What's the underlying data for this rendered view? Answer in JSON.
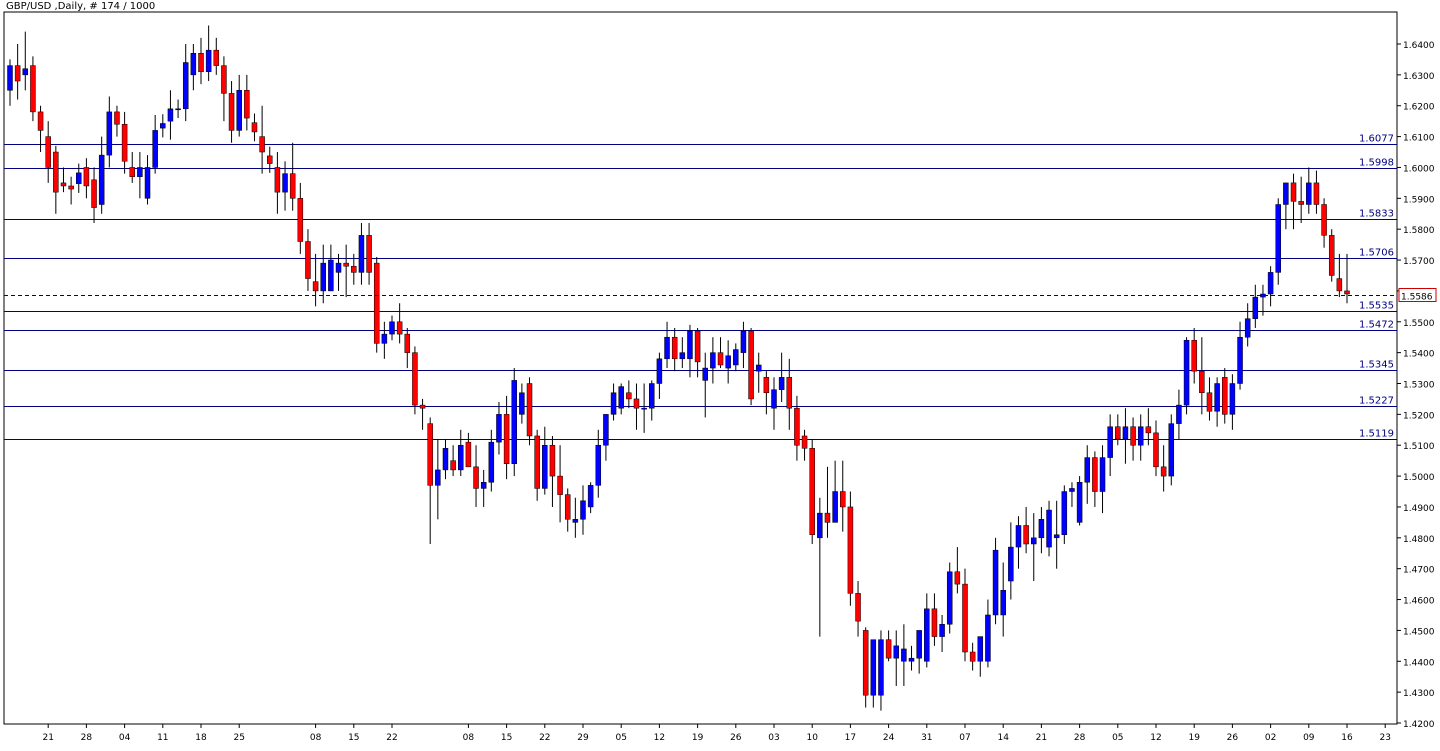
{
  "header": {
    "title": "GBP/USD ,Daily, # 174 / 1000"
  },
  "colors": {
    "bull": "#0000ff",
    "bear": "#ff0000",
    "wick": "#000000",
    "level_line": "#000080",
    "level_text": "#000080",
    "current_price": "#cc0000",
    "frame": "#000000",
    "background": "#ffffff"
  },
  "chart_data": {
    "type": "candlestick",
    "title": "GBP/USD ,Daily, # 174 / 1000",
    "ylim": [
      1.42,
      1.65
    ],
    "y_ticks": [
      "1.4200",
      "1.4300",
      "1.4400",
      "1.4500",
      "1.4600",
      "1.4700",
      "1.4800",
      "1.4900",
      "1.5000",
      "1.5100",
      "1.5200",
      "1.5300",
      "1.5400",
      "1.5500",
      "1.5600",
      "1.5700",
      "1.5800",
      "1.5900",
      "1.6000",
      "1.6100",
      "1.6200",
      "1.6300",
      "1.6400"
    ],
    "x_ticks": [
      {
        "label": "21",
        "bar": 5
      },
      {
        "label": "28",
        "bar": 10
      },
      {
        "label": "04",
        "bar": 15
      },
      {
        "label": "11",
        "bar": 20
      },
      {
        "label": "18",
        "bar": 25
      },
      {
        "label": "25",
        "bar": 30
      },
      {
        "label": "08",
        "bar": 40
      },
      {
        "label": "15",
        "bar": 45
      },
      {
        "label": "22",
        "bar": 50
      },
      {
        "label": "08",
        "bar": 60
      },
      {
        "label": "15",
        "bar": 65
      },
      {
        "label": "22",
        "bar": 70
      },
      {
        "label": "29",
        "bar": 75
      },
      {
        "label": "05",
        "bar": 80
      },
      {
        "label": "12",
        "bar": 85
      },
      {
        "label": "19",
        "bar": 90
      },
      {
        "label": "26",
        "bar": 95
      },
      {
        "label": "03",
        "bar": 100
      },
      {
        "label": "10",
        "bar": 105
      },
      {
        "label": "17",
        "bar": 110
      },
      {
        "label": "24",
        "bar": 115
      },
      {
        "label": "31",
        "bar": 120
      },
      {
        "label": "07",
        "bar": 125
      },
      {
        "label": "14",
        "bar": 130
      },
      {
        "label": "21",
        "bar": 135
      },
      {
        "label": "28",
        "bar": 140
      },
      {
        "label": "05",
        "bar": 145
      },
      {
        "label": "12",
        "bar": 150
      },
      {
        "label": "19",
        "bar": 155
      },
      {
        "label": "26",
        "bar": 160
      },
      {
        "label": "02",
        "bar": 165
      },
      {
        "label": "09",
        "bar": 170
      },
      {
        "label": "16",
        "bar": 175
      },
      {
        "label": "23",
        "bar": 180
      }
    ],
    "levels": [
      "1.6077",
      "1.5998",
      "1.5833",
      "1.5706",
      "1.5535",
      "1.5472",
      "1.5345",
      "1.5227",
      "1.5119"
    ],
    "current_price": "1.5586",
    "ohlc_anchors": [
      [
        0,
        1.625,
        1.635,
        1.62,
        1.633
      ],
      [
        1,
        1.633,
        1.64,
        1.622,
        1.628
      ],
      [
        2,
        1.63,
        1.644,
        1.625,
        1.632
      ],
      [
        3,
        1.633,
        1.636,
        1.615,
        1.618
      ],
      [
        4,
        1.618,
        1.62,
        1.605,
        1.612
      ],
      [
        5,
        1.61,
        1.615,
        1.595,
        1.6
      ],
      [
        6,
        1.605,
        1.607,
        1.585,
        1.592
      ],
      [
        7,
        1.595,
        1.6,
        1.592,
        1.594
      ],
      [
        8,
        1.594,
        1.597,
        1.588,
        1.593
      ],
      [
        10,
        1.6,
        1.603,
        1.59,
        1.594
      ],
      [
        11,
        1.596,
        1.6,
        1.582,
        1.587
      ],
      [
        12,
        1.588,
        1.61,
        1.585,
        1.604
      ],
      [
        13,
        1.604,
        1.623,
        1.6,
        1.618
      ],
      [
        14,
        1.618,
        1.62,
        1.61,
        1.614
      ],
      [
        15,
        1.614,
        1.618,
        1.598,
        1.602
      ],
      [
        16,
        1.6,
        1.605,
        1.595,
        1.597
      ],
      [
        17,
        1.597,
        1.605,
        1.59,
        1.6
      ],
      [
        18,
        1.59,
        1.604,
        1.588,
        1.6
      ],
      [
        19,
        1.6,
        1.617,
        1.598,
        1.612
      ],
      [
        21,
        1.615,
        1.625,
        1.609,
        1.619
      ],
      [
        23,
        1.619,
        1.64,
        1.615,
        1.634
      ],
      [
        24,
        1.63,
        1.64,
        1.625,
        1.637
      ],
      [
        25,
        1.637,
        1.642,
        1.627,
        1.631
      ],
      [
        26,
        1.631,
        1.646,
        1.628,
        1.638
      ],
      [
        27,
        1.638,
        1.642,
        1.63,
        1.633
      ],
      [
        28,
        1.633,
        1.636,
        1.615,
        1.624
      ],
      [
        29,
        1.624,
        1.628,
        1.608,
        1.612
      ],
      [
        30,
        1.612,
        1.63,
        1.61,
        1.625
      ],
      [
        31,
        1.625,
        1.63,
        1.612,
        1.616
      ],
      [
        33,
        1.61,
        1.62,
        1.598,
        1.605
      ],
      [
        35,
        1.6,
        1.605,
        1.585,
        1.592
      ],
      [
        36,
        1.592,
        1.602,
        1.586,
        1.598
      ],
      [
        37,
        1.598,
        1.608,
        1.586,
        1.59
      ],
      [
        38,
        1.59,
        1.595,
        1.572,
        1.576
      ],
      [
        39,
        1.576,
        1.58,
        1.56,
        1.564
      ],
      [
        40,
        1.563,
        1.572,
        1.555,
        1.56
      ],
      [
        41,
        1.56,
        1.575,
        1.556,
        1.569
      ],
      [
        42,
        1.56,
        1.575,
        1.56,
        1.57
      ],
      [
        43,
        1.566,
        1.572,
        1.56,
        1.569
      ],
      [
        44,
        1.569,
        1.575,
        1.558,
        1.568
      ],
      [
        45,
        1.568,
        1.572,
        1.562,
        1.566
      ],
      [
        46,
        1.566,
        1.582,
        1.562,
        1.578
      ],
      [
        47,
        1.578,
        1.582,
        1.562,
        1.566
      ],
      [
        48,
        1.569,
        1.571,
        1.54,
        1.543
      ],
      [
        49,
        1.543,
        1.55,
        1.538,
        1.546
      ],
      [
        50,
        1.546,
        1.552,
        1.544,
        1.55
      ],
      [
        51,
        1.55,
        1.556,
        1.543,
        1.546
      ],
      [
        52,
        1.546,
        1.548,
        1.535,
        1.54
      ],
      [
        53,
        1.54,
        1.542,
        1.52,
        1.523
      ],
      [
        54,
        1.523,
        1.525,
        1.515,
        1.522
      ],
      [
        55,
        1.517,
        1.519,
        1.478,
        1.497
      ],
      [
        56,
        1.497,
        1.512,
        1.486,
        1.502
      ],
      [
        57,
        1.502,
        1.512,
        1.499,
        1.509
      ],
      [
        58,
        1.505,
        1.51,
        1.5,
        1.502
      ],
      [
        59,
        1.502,
        1.515,
        1.5,
        1.51
      ],
      [
        60,
        1.511,
        1.514,
        1.505,
        1.503
      ],
      [
        61,
        1.503,
        1.51,
        1.49,
        1.496
      ],
      [
        62,
        1.496,
        1.502,
        1.49,
        1.498
      ],
      [
        63,
        1.498,
        1.515,
        1.495,
        1.511
      ],
      [
        64,
        1.511,
        1.524,
        1.507,
        1.52
      ],
      [
        65,
        1.52,
        1.526,
        1.499,
        1.504
      ],
      [
        66,
        1.504,
        1.535,
        1.5,
        1.531
      ],
      [
        67,
        1.52,
        1.53,
        1.517,
        1.527
      ],
      [
        68,
        1.53,
        1.532,
        1.51,
        1.513
      ],
      [
        69,
        1.513,
        1.515,
        1.492,
        1.496
      ],
      [
        70,
        1.496,
        1.516,
        1.494,
        1.51
      ],
      [
        71,
        1.51,
        1.513,
        1.49,
        1.5
      ],
      [
        72,
        1.5,
        1.51,
        1.485,
        1.494
      ],
      [
        73,
        1.494,
        1.496,
        1.482,
        1.486
      ],
      [
        74,
        1.485,
        1.493,
        1.48,
        1.486
      ],
      [
        75,
        1.486,
        1.497,
        1.481,
        1.492
      ],
      [
        76,
        1.49,
        1.498,
        1.488,
        1.497
      ],
      [
        77,
        1.497,
        1.515,
        1.493,
        1.51
      ],
      [
        78,
        1.51,
        1.52,
        1.505,
        1.52
      ],
      [
        79,
        1.52,
        1.53,
        1.518,
        1.527
      ],
      [
        80,
        1.522,
        1.53,
        1.52,
        1.529
      ],
      [
        81,
        1.527,
        1.531,
        1.522,
        1.525
      ],
      [
        82,
        1.525,
        1.53,
        1.515,
        1.522
      ],
      [
        83,
        1.522,
        1.53,
        1.514,
        1.522
      ],
      [
        84,
        1.522,
        1.531,
        1.518,
        1.53
      ],
      [
        85,
        1.53,
        1.54,
        1.525,
        1.538
      ],
      [
        86,
        1.538,
        1.55,
        1.535,
        1.545
      ],
      [
        87,
        1.545,
        1.548,
        1.534,
        1.538
      ],
      [
        88,
        1.538,
        1.545,
        1.535,
        1.54
      ],
      [
        89,
        1.538,
        1.549,
        1.532,
        1.547
      ],
      [
        90,
        1.547,
        1.548,
        1.532,
        1.537
      ],
      [
        91,
        1.531,
        1.54,
        1.519,
        1.535
      ],
      [
        92,
        1.535,
        1.545,
        1.53,
        1.54
      ],
      [
        93,
        1.54,
        1.545,
        1.535,
        1.536
      ],
      [
        94,
        1.535,
        1.544,
        1.53,
        1.539
      ],
      [
        95,
        1.536,
        1.543,
        1.534,
        1.541
      ],
      [
        96,
        1.54,
        1.55,
        1.535,
        1.547
      ],
      [
        97,
        1.547,
        1.548,
        1.523,
        1.525
      ],
      [
        98,
        1.534,
        1.54,
        1.527,
        1.536
      ],
      [
        99,
        1.532,
        1.534,
        1.52,
        1.527
      ],
      [
        100,
        1.522,
        1.532,
        1.515,
        1.528
      ],
      [
        101,
        1.528,
        1.54,
        1.524,
        1.532
      ],
      [
        102,
        1.532,
        1.538,
        1.515,
        1.522
      ],
      [
        103,
        1.522,
        1.526,
        1.505,
        1.51
      ],
      [
        104,
        1.513,
        1.515,
        1.505,
        1.509
      ],
      [
        105,
        1.509,
        1.512,
        1.478,
        1.481
      ],
      [
        106,
        1.48,
        1.493,
        1.448,
        1.488
      ],
      [
        107,
        1.488,
        1.503,
        1.48,
        1.485
      ],
      [
        108,
        1.485,
        1.505,
        1.485,
        1.495
      ],
      [
        109,
        1.495,
        1.505,
        1.482,
        1.49
      ],
      [
        110,
        1.49,
        1.495,
        1.458,
        1.462
      ],
      [
        111,
        1.462,
        1.466,
        1.448,
        1.453
      ],
      [
        112,
        1.45,
        1.451,
        1.425,
        1.429
      ],
      [
        113,
        1.429,
        1.44,
        1.425,
        1.447
      ],
      [
        114,
        1.429,
        1.45,
        1.424,
        1.447
      ],
      [
        115,
        1.447,
        1.45,
        1.44,
        1.441
      ],
      [
        116,
        1.441,
        1.45,
        1.432,
        1.445
      ],
      [
        117,
        1.44,
        1.452,
        1.432,
        1.444
      ],
      [
        118,
        1.44,
        1.445,
        1.437,
        1.441
      ],
      [
        119,
        1.441,
        1.45,
        1.436,
        1.45
      ],
      [
        120,
        1.44,
        1.462,
        1.438,
        1.457
      ],
      [
        121,
        1.457,
        1.462,
        1.445,
        1.448
      ],
      [
        122,
        1.448,
        1.455,
        1.443,
        1.452
      ],
      [
        123,
        1.452,
        1.472,
        1.449,
        1.469
      ],
      [
        124,
        1.469,
        1.477,
        1.462,
        1.465
      ],
      [
        125,
        1.465,
        1.47,
        1.44,
        1.443
      ],
      [
        126,
        1.443,
        1.446,
        1.437,
        1.44
      ],
      [
        127,
        1.44,
        1.445,
        1.435,
        1.448
      ],
      [
        128,
        1.44,
        1.46,
        1.438,
        1.455
      ],
      [
        129,
        1.455,
        1.48,
        1.452,
        1.476
      ],
      [
        130,
        1.455,
        1.472,
        1.448,
        1.463
      ],
      [
        131,
        1.466,
        1.485,
        1.46,
        1.477
      ],
      [
        132,
        1.477,
        1.487,
        1.47,
        1.484
      ],
      [
        133,
        1.484,
        1.49,
        1.475,
        1.478
      ],
      [
        134,
        1.478,
        1.488,
        1.466,
        1.48
      ],
      [
        135,
        1.48,
        1.49,
        1.475,
        1.486
      ],
      [
        136,
        1.477,
        1.492,
        1.474,
        1.489
      ],
      [
        137,
        1.48,
        1.492,
        1.47,
        1.481
      ],
      [
        138,
        1.481,
        1.497,
        1.478,
        1.495
      ],
      [
        139,
        1.495,
        1.498,
        1.49,
        1.496
      ],
      [
        140,
        1.485,
        1.5,
        1.484,
        1.498
      ],
      [
        141,
        1.498,
        1.51,
        1.491,
        1.506
      ],
      [
        142,
        1.506,
        1.508,
        1.49,
        1.495
      ],
      [
        143,
        1.495,
        1.51,
        1.488,
        1.506
      ],
      [
        144,
        1.506,
        1.52,
        1.5,
        1.516
      ],
      [
        145,
        1.516,
        1.52,
        1.51,
        1.512
      ],
      [
        146,
        1.512,
        1.522,
        1.504,
        1.516
      ],
      [
        147,
        1.516,
        1.519,
        1.505,
        1.51
      ],
      [
        148,
        1.51,
        1.52,
        1.505,
        1.516
      ],
      [
        149,
        1.516,
        1.522,
        1.51,
        1.514
      ],
      [
        150,
        1.514,
        1.518,
        1.5,
        1.503
      ],
      [
        151,
        1.503,
        1.51,
        1.495,
        1.5
      ],
      [
        152,
        1.5,
        1.52,
        1.497,
        1.517
      ],
      [
        153,
        1.517,
        1.528,
        1.512,
        1.523
      ],
      [
        154,
        1.523,
        1.545,
        1.52,
        1.544
      ],
      [
        155,
        1.544,
        1.548,
        1.53,
        1.534
      ],
      [
        156,
        1.534,
        1.545,
        1.52,
        1.527
      ],
      [
        157,
        1.527,
        1.532,
        1.518,
        1.521
      ],
      [
        158,
        1.521,
        1.532,
        1.516,
        1.53
      ],
      [
        159,
        1.532,
        1.535,
        1.517,
        1.52
      ],
      [
        160,
        1.52,
        1.533,
        1.515,
        1.53
      ],
      [
        161,
        1.53,
        1.55,
        1.528,
        1.545
      ],
      [
        162,
        1.545,
        1.556,
        1.542,
        1.551
      ],
      [
        163,
        1.551,
        1.562,
        1.548,
        1.558
      ],
      [
        164,
        1.558,
        1.562,
        1.552,
        1.559
      ],
      [
        165,
        1.559,
        1.568,
        1.555,
        1.566
      ],
      [
        166,
        1.566,
        1.59,
        1.562,
        1.588
      ],
      [
        167,
        1.588,
        1.592,
        1.58,
        1.595
      ],
      [
        168,
        1.595,
        1.598,
        1.58,
        1.589
      ],
      [
        169,
        1.589,
        1.597,
        1.582,
        1.588
      ],
      [
        170,
        1.588,
        1.6,
        1.585,
        1.595
      ],
      [
        171,
        1.595,
        1.599,
        1.585,
        1.588
      ],
      [
        172,
        1.588,
        1.59,
        1.574,
        1.578
      ],
      [
        173,
        1.578,
        1.58,
        1.563,
        1.565
      ],
      [
        174,
        1.564,
        1.572,
        1.558,
        1.56
      ],
      [
        175,
        1.56,
        1.572,
        1.556,
        1.559
      ]
    ]
  }
}
